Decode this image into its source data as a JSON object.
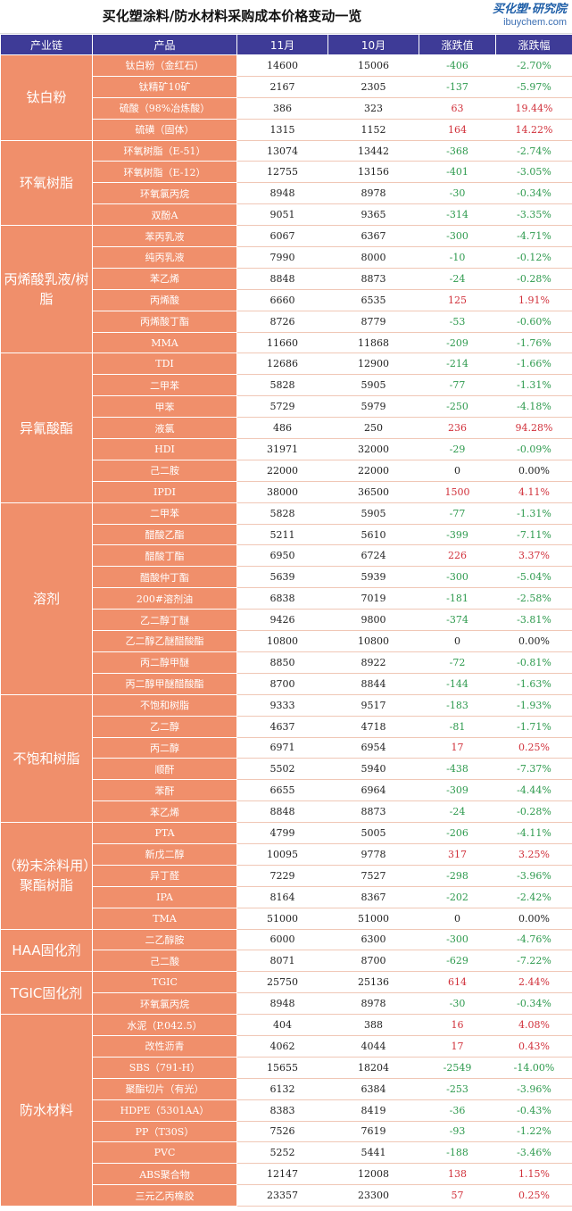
{
  "title": "买化塑涂料/防水材料采购成本价格变动一览",
  "logo": {
    "main": "买化塑·研究院",
    "sub": "ibuychem.com"
  },
  "headers": [
    "产业链",
    "产品",
    "11月",
    "10月",
    "涨跌值",
    "涨跌幅"
  ],
  "groups": [
    {
      "category": "钛白粉",
      "rows": [
        [
          "钛白粉（金红石）",
          "14600",
          "15006",
          "-406",
          "-2.70%"
        ],
        [
          "钛精矿10矿",
          "2167",
          "2305",
          "-137",
          "-5.97%"
        ],
        [
          "硫酸（98%冶炼酸）",
          "386",
          "323",
          "63",
          "19.44%"
        ],
        [
          "硫磺（固体）",
          "1315",
          "1152",
          "164",
          "14.22%"
        ]
      ]
    },
    {
      "category": "环氧树脂",
      "rows": [
        [
          "环氧树脂（E-51）",
          "13074",
          "13442",
          "-368",
          "-2.74%"
        ],
        [
          "环氧树脂（E-12）",
          "12755",
          "13156",
          "-401",
          "-3.05%"
        ],
        [
          "环氧氯丙烷",
          "8948",
          "8978",
          "-30",
          "-0.34%"
        ],
        [
          "双酚A",
          "9051",
          "9365",
          "-314",
          "-3.35%"
        ]
      ]
    },
    {
      "category": "丙烯酸乳液/树脂",
      "rows": [
        [
          "苯丙乳液",
          "6067",
          "6367",
          "-300",
          "-4.71%"
        ],
        [
          "纯丙乳液",
          "7990",
          "8000",
          "-10",
          "-0.12%"
        ],
        [
          "苯乙烯",
          "8848",
          "8873",
          "-24",
          "-0.28%"
        ],
        [
          "丙烯酸",
          "6660",
          "6535",
          "125",
          "1.91%"
        ],
        [
          "丙烯酸丁酯",
          "8726",
          "8779",
          "-53",
          "-0.60%"
        ],
        [
          "MMA",
          "11660",
          "11868",
          "-209",
          "-1.76%"
        ]
      ]
    },
    {
      "category": "异氰酸酯",
      "rows": [
        [
          "TDI",
          "12686",
          "12900",
          "-214",
          "-1.66%"
        ],
        [
          "二甲苯",
          "5828",
          "5905",
          "-77",
          "-1.31%"
        ],
        [
          "甲苯",
          "5729",
          "5979",
          "-250",
          "-4.18%"
        ],
        [
          "液氯",
          "486",
          "250",
          "236",
          "94.28%"
        ],
        [
          "HDI",
          "31971",
          "32000",
          "-29",
          "-0.09%"
        ],
        [
          "己二胺",
          "22000",
          "22000",
          "0",
          "0.00%"
        ],
        [
          "IPDI",
          "38000",
          "36500",
          "1500",
          "4.11%"
        ]
      ]
    },
    {
      "category": "溶剂",
      "rows": [
        [
          "二甲苯",
          "5828",
          "5905",
          "-77",
          "-1.31%"
        ],
        [
          "醋酸乙酯",
          "5211",
          "5610",
          "-399",
          "-7.11%"
        ],
        [
          "醋酸丁酯",
          "6950",
          "6724",
          "226",
          "3.37%"
        ],
        [
          "醋酸仲丁酯",
          "5639",
          "5939",
          "-300",
          "-5.04%"
        ],
        [
          "200#溶剂油",
          "6838",
          "7019",
          "-181",
          "-2.58%"
        ],
        [
          "乙二醇丁醚",
          "9426",
          "9800",
          "-374",
          "-3.81%"
        ],
        [
          "乙二醇乙醚醋酸酯",
          "10800",
          "10800",
          "0",
          "0.00%"
        ],
        [
          "丙二醇甲醚",
          "8850",
          "8922",
          "-72",
          "-0.81%"
        ],
        [
          "丙二醇甲醚醋酸酯",
          "8700",
          "8844",
          "-144",
          "-1.63%"
        ]
      ]
    },
    {
      "category": "不饱和树脂",
      "rows": [
        [
          "不饱和树脂",
          "9333",
          "9517",
          "-183",
          "-1.93%"
        ],
        [
          "乙二醇",
          "4637",
          "4718",
          "-81",
          "-1.71%"
        ],
        [
          "丙二醇",
          "6971",
          "6954",
          "17",
          "0.25%"
        ],
        [
          "顺酐",
          "5502",
          "5940",
          "-438",
          "-7.37%"
        ],
        [
          "苯酐",
          "6655",
          "6964",
          "-309",
          "-4.44%"
        ],
        [
          "苯乙烯",
          "8848",
          "8873",
          "-24",
          "-0.28%"
        ]
      ]
    },
    {
      "category": "（粉末涂料用）聚酯树脂",
      "rows": [
        [
          "PTA",
          "4799",
          "5005",
          "-206",
          "-4.11%"
        ],
        [
          "新戊二醇",
          "10095",
          "9778",
          "317",
          "3.25%"
        ],
        [
          "异丁醛",
          "7229",
          "7527",
          "-298",
          "-3.96%"
        ],
        [
          "IPA",
          "8164",
          "8367",
          "-202",
          "-2.42%"
        ],
        [
          "TMA",
          "51000",
          "51000",
          "0",
          "0.00%"
        ]
      ]
    },
    {
      "category": "HAA固化剂",
      "rows": [
        [
          "二乙醇胺",
          "6000",
          "6300",
          "-300",
          "-4.76%"
        ],
        [
          "己二酸",
          "8071",
          "8700",
          "-629",
          "-7.22%"
        ]
      ]
    },
    {
      "category": "TGIC固化剂",
      "rows": [
        [
          "TGIC",
          "25750",
          "25136",
          "614",
          "2.44%"
        ],
        [
          "环氧氯丙烷",
          "8948",
          "8978",
          "-30",
          "-0.34%"
        ]
      ]
    },
    {
      "category": "防水材料",
      "rows": [
        [
          "水泥（P.042.5）",
          "404",
          "388",
          "16",
          "4.08%"
        ],
        [
          "改性沥青",
          "4062",
          "4044",
          "17",
          "0.43%"
        ],
        [
          "SBS（791-H）",
          "15655",
          "18204",
          "-2549",
          "-14.00%"
        ],
        [
          "聚酯切片（有光）",
          "6132",
          "6384",
          "-253",
          "-3.96%"
        ],
        [
          "HDPE（5301AA）",
          "8383",
          "8419",
          "-36",
          "-0.43%"
        ],
        [
          "PP（T30S）",
          "7526",
          "7619",
          "-93",
          "-1.22%"
        ],
        [
          "PVC",
          "5252",
          "5441",
          "-188",
          "-3.46%"
        ],
        [
          "ABS聚合物",
          "12147",
          "12008",
          "138",
          "1.15%"
        ],
        [
          "三元乙丙橡胶",
          "23357",
          "23300",
          "57",
          "0.25%"
        ]
      ]
    }
  ]
}
